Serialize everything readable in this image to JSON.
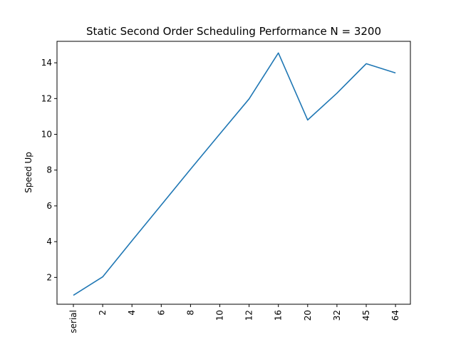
{
  "chart_data": {
    "type": "line",
    "title": "Static Second Order Scheduling Performance N = 3200",
    "xlabel": "",
    "ylabel": "Speed Up",
    "categories": [
      "serial",
      "2",
      "4",
      "6",
      "8",
      "10",
      "12",
      "16",
      "20",
      "32",
      "45",
      "64"
    ],
    "series": [
      {
        "values": [
          1.0,
          2.03,
          4.05,
          6.05,
          8.05,
          10.02,
          11.98,
          14.55,
          10.8,
          12.3,
          13.95,
          13.43
        ],
        "color": "#1f77b4"
      }
    ],
    "ylim": [
      0.5,
      15.2
    ],
    "yticks": [
      2,
      4,
      6,
      8,
      10,
      12,
      14
    ],
    "grid": false,
    "legend": "none"
  }
}
